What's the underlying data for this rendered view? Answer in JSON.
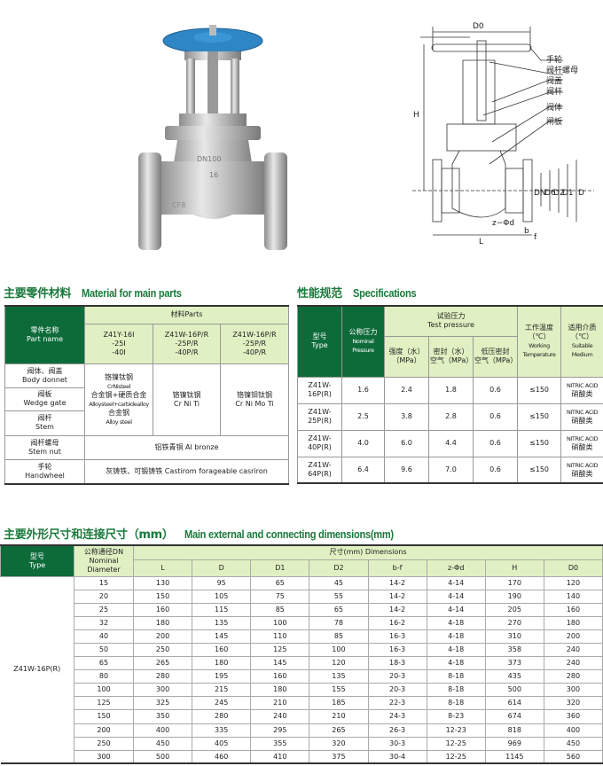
{
  "drawing": {
    "callouts": [
      "手轮",
      "阀杆螺母",
      "阀盖",
      "阀杆",
      "阀体",
      "闸板"
    ],
    "dims": {
      "D0": "D0",
      "H": "H",
      "L": "L",
      "DN": "DN",
      "D6": "D6",
      "D2": "D2",
      "D1": "D1",
      "D": "D",
      "zd": "z−Φd",
      "b": "b",
      "f": "f"
    }
  },
  "photo": {
    "body_marks": [
      "DN100",
      "16",
      "CF8"
    ],
    "handwheel_color": "#2f86c4"
  },
  "materials": {
    "title_cn": "主要零件材料",
    "title_en": "Material for main parts",
    "header": {
      "part_cn": "零件名称",
      "part_en": "Part name",
      "parts_label": "材料Parts",
      "models": [
        [
          "Z41Y-16I",
          "-25I",
          "-40I"
        ],
        [
          "Z41W-16P/R",
          "-25P/R",
          "-40P/R"
        ],
        [
          "Z41W-16P/R",
          "-25P/R",
          "-40P/R"
        ]
      ]
    },
    "rows": [
      {
        "cn": "阀体、阀盖",
        "en": "Body donnet"
      },
      {
        "cn": "阀板",
        "en": "Wedge gate"
      },
      {
        "cn": "阀杆",
        "en": "Stem"
      },
      {
        "cn": "阀杆螺母",
        "en": "Stem nut"
      },
      {
        "cn": "手轮",
        "en": "Handwheel"
      }
    ],
    "col1": [
      "铬镍钛钢",
      "CrNisteel",
      "合金钢+硬质合金",
      "Alloysteel+carbidealloy",
      "合金钢",
      "Alloy steel"
    ],
    "col2": [
      "铬镍钛钢",
      "Cr Ni Ti"
    ],
    "col3": [
      "铬镍钼钛钢",
      "Cr Ni Mo Ti"
    ],
    "stem_nut": "铝铁青铜 Al bronze",
    "handwheel": "灰铸铁、可锻铸铁 Castirom forageable casriron"
  },
  "specs": {
    "title_cn": "性能规范",
    "title_en": "Specifications",
    "header": {
      "type_cn": "型号",
      "type_en": "Type",
      "nominal_cn": "公称压力",
      "nominal_en": "Nominal Pressure",
      "test_cn": "试验压力",
      "test_en": "Test pressure",
      "strength": "强度（水）",
      "strength_unit": "（MPa）",
      "seal": "密封（水）",
      "seal_unit": "空气（MPa）",
      "low": "低压密封",
      "low_unit": "空气（MPa）",
      "temp_cn": "工作温度",
      "temp_unit": "（℃）",
      "temp_en": "Working Temperature",
      "medium_cn": "适用介质",
      "medium_unit": "（℃）",
      "medium_en": "Suitable Medium"
    },
    "rows": [
      {
        "type": "Z41W-16P(R)",
        "nominal": "1.6",
        "strength": "2.4",
        "seal": "1.8",
        "low": "0.6",
        "temp": "≤150",
        "medium_en": "NITRIC ACID",
        "medium_cn": "硝酸类"
      },
      {
        "type": "Z41W-25P(R)",
        "nominal": "2.5",
        "strength": "3.8",
        "seal": "2.8",
        "low": "0.6",
        "temp": "≤150",
        "medium_en": "NITRIC ACID",
        "medium_cn": "硝酸类"
      },
      {
        "type": "Z41W-40P(R)",
        "nominal": "4.0",
        "strength": "6.0",
        "seal": "4.4",
        "low": "0.6",
        "temp": "≤150",
        "medium_en": "NITRIC ACID",
        "medium_cn": "硝酸类"
      },
      {
        "type": "Z41W-64P(R)",
        "nominal": "6.4",
        "strength": "9.6",
        "seal": "7.0",
        "low": "0.6",
        "temp": "≤150",
        "medium_en": "NITRIC ACID",
        "medium_cn": "硝酸类"
      }
    ]
  },
  "dimensions": {
    "title_cn": "主要外形尺寸和连接尺寸（mm）",
    "title_en": "Main external and connecting dimensions(mm)",
    "header": {
      "type_cn": "型号",
      "type_en": "Type",
      "dn_cn": "公称通径DN",
      "dn_en": "Nominal Diameter",
      "dims_label": "尺寸(mm) Dimensions",
      "columns": [
        "L",
        "D",
        "D1",
        "D2",
        "b-f",
        "z-Φd",
        "H",
        "D0"
      ]
    },
    "type": "Z41W-16P(R)",
    "rows": [
      [
        "15",
        "130",
        "95",
        "65",
        "45",
        "14-2",
        "4-14",
        "170",
        "120"
      ],
      [
        "20",
        "150",
        "105",
        "75",
        "55",
        "14-2",
        "4-14",
        "190",
        "140"
      ],
      [
        "25",
        "160",
        "115",
        "85",
        "65",
        "14-2",
        "4-14",
        "205",
        "160"
      ],
      [
        "32",
        "180",
        "135",
        "100",
        "78",
        "16-2",
        "4-18",
        "270",
        "180"
      ],
      [
        "40",
        "200",
        "145",
        "110",
        "85",
        "16-3",
        "4-18",
        "310",
        "200"
      ],
      [
        "50",
        "250",
        "160",
        "125",
        "100",
        "16-3",
        "4-18",
        "358",
        "240"
      ],
      [
        "65",
        "265",
        "180",
        "145",
        "120",
        "18-3",
        "4-18",
        "373",
        "240"
      ],
      [
        "80",
        "280",
        "195",
        "160",
        "135",
        "20-3",
        "8-18",
        "435",
        "280"
      ],
      [
        "100",
        "300",
        "215",
        "180",
        "155",
        "20-3",
        "8-18",
        "500",
        "300"
      ],
      [
        "125",
        "325",
        "245",
        "210",
        "185",
        "22-3",
        "8-18",
        "614",
        "320"
      ],
      [
        "150",
        "350",
        "280",
        "240",
        "210",
        "24-3",
        "8-23",
        "674",
        "360"
      ],
      [
        "200",
        "400",
        "335",
        "295",
        "265",
        "26-3",
        "12-23",
        "818",
        "400"
      ],
      [
        "250",
        "450",
        "405",
        "355",
        "320",
        "30-3",
        "12-25",
        "969",
        "450"
      ],
      [
        "300",
        "500",
        "460",
        "410",
        "375",
        "30-4",
        "12-25",
        "1145",
        "560"
      ]
    ]
  }
}
